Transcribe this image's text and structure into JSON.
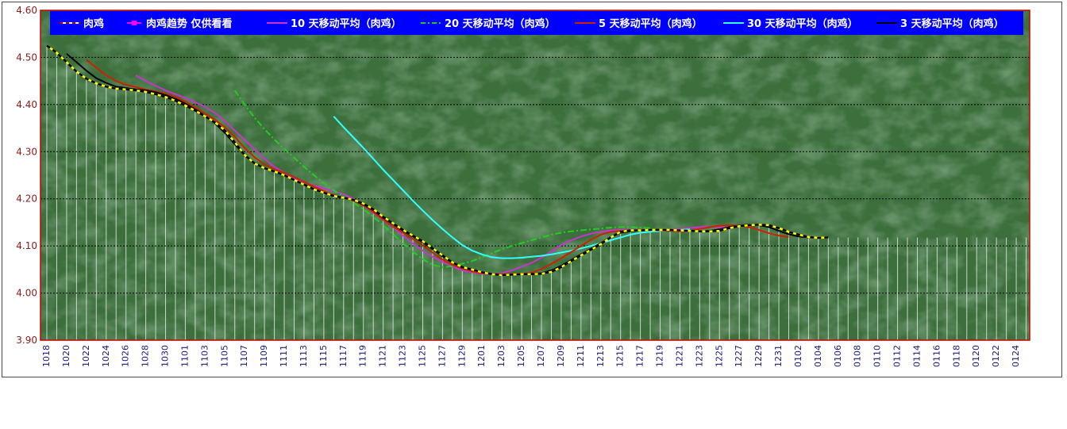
{
  "chart_data": {
    "type": "line",
    "title": "",
    "xlabel": "",
    "ylabel": "",
    "ylim": [
      3.9,
      4.6
    ],
    "yticks": [
      "3.90",
      "4.00",
      "4.10",
      "4.20",
      "4.30",
      "4.40",
      "4.50",
      "4.60"
    ],
    "x_tick_labels": [
      "1018",
      "1020",
      "1022",
      "1024",
      "1026",
      "1028",
      "1030",
      "1101",
      "1103",
      "1105",
      "1107",
      "1109",
      "1111",
      "1113",
      "1115",
      "1117",
      "1119",
      "1121",
      "1123",
      "1125",
      "1127",
      "1129",
      "1201",
      "1203",
      "1205",
      "1207",
      "1209",
      "1211",
      "1213",
      "1215",
      "1217",
      "1219",
      "1221",
      "1223",
      "1225",
      "1227",
      "1229",
      "1231",
      "0102",
      "0104",
      "0106",
      "0108",
      "0110",
      "0112",
      "0114",
      "0116",
      "0118",
      "0120",
      "0122",
      "0124"
    ],
    "x_point_count": 100,
    "grid": true,
    "legend_position": "top",
    "background": "green-texture",
    "colors": {
      "plot_bg": "#3d6f3d",
      "legend_bg": "#0000ff",
      "axis": "#cc0000",
      "grid": "#000000",
      "drop_lines": "#dfe9df"
    },
    "series": [
      {
        "name": "肉鸡",
        "color": "#ffff00",
        "style": "dashed-black",
        "values": [
          4.525,
          4.51,
          4.49,
          4.47,
          4.455,
          4.445,
          4.438,
          4.434,
          4.432,
          4.43,
          4.427,
          4.422,
          4.416,
          4.408,
          4.398,
          4.387,
          4.375,
          4.362,
          4.345,
          4.32,
          4.293,
          4.275,
          4.265,
          4.258,
          4.25,
          4.24,
          4.23,
          4.22,
          4.213,
          4.206,
          4.202,
          4.198,
          4.19,
          4.178,
          4.162,
          4.148,
          4.134,
          4.122,
          4.11,
          4.095,
          4.08,
          4.065,
          4.055,
          4.05,
          4.044,
          4.04,
          4.038,
          4.039,
          4.04,
          4.04,
          4.041,
          4.045,
          4.055,
          4.068,
          4.08,
          4.092,
          4.104,
          4.118,
          4.13,
          4.133,
          4.133,
          4.134,
          4.134,
          4.134,
          4.133,
          4.132,
          4.131,
          4.131,
          4.132,
          4.138,
          4.142,
          4.144,
          4.145,
          4.144,
          4.138,
          4.13,
          4.124,
          4.119,
          4.117,
          4.118
        ]
      },
      {
        "name": "肉鸡趋势  仅供看看",
        "color": "#ff00ff",
        "values": []
      },
      {
        "name": "10 天移动平均（肉鸡）",
        "color": "#cc33cc",
        "values": [
          null,
          null,
          null,
          null,
          null,
          null,
          null,
          null,
          null,
          4.462,
          4.45,
          4.44,
          4.43,
          4.422,
          4.414,
          4.405,
          4.395,
          4.382,
          4.365,
          4.345,
          4.325,
          4.305,
          4.285,
          4.268,
          4.255,
          4.243,
          4.235,
          4.228,
          4.222,
          4.216,
          4.21,
          4.2,
          4.186,
          4.17,
          4.155,
          4.14,
          4.122,
          4.105,
          4.09,
          4.077,
          4.066,
          4.056,
          4.048,
          4.044,
          4.041,
          4.04,
          4.042,
          4.048,
          4.056,
          4.064,
          4.075,
          4.088,
          4.102,
          4.112,
          4.12,
          4.126,
          4.13,
          4.133,
          4.134,
          4.134,
          4.133,
          4.133,
          4.133,
          4.134,
          4.136,
          4.138,
          4.14,
          4.141,
          4.14,
          4.138
        ]
      },
      {
        "name": "20 天移动平均（肉鸡）",
        "color": "#22cc22",
        "style": "dash-dot",
        "values": [
          null,
          null,
          null,
          null,
          null,
          null,
          null,
          null,
          null,
          null,
          null,
          null,
          null,
          null,
          null,
          null,
          null,
          null,
          null,
          4.43,
          4.4,
          4.372,
          4.348,
          4.326,
          4.306,
          4.287,
          4.268,
          4.25,
          4.233,
          4.218,
          4.204,
          4.192,
          4.178,
          4.162,
          4.144,
          4.125,
          4.106,
          4.088,
          4.072,
          4.06,
          4.055,
          4.057,
          4.062,
          4.068,
          4.076,
          4.085,
          4.093,
          4.1,
          4.106,
          4.112,
          4.118,
          4.124,
          4.128,
          4.131,
          4.133,
          4.135,
          4.137,
          4.139,
          4.14,
          4.14,
          4.139,
          4.138
        ]
      },
      {
        "name": "5 天移动平均（肉鸡）",
        "color": "#cc2200",
        "values": [
          null,
          null,
          null,
          null,
          4.495,
          4.478,
          4.462,
          4.45,
          4.442,
          4.437,
          4.432,
          4.428,
          4.423,
          4.416,
          4.406,
          4.394,
          4.381,
          4.368,
          4.352,
          4.332,
          4.308,
          4.288,
          4.273,
          4.263,
          4.255,
          4.246,
          4.236,
          4.226,
          4.216,
          4.208,
          4.202,
          4.196,
          4.186,
          4.172,
          4.156,
          4.141,
          4.128,
          4.115,
          4.101,
          4.086,
          4.071,
          4.06,
          4.052,
          4.046,
          4.042,
          4.04,
          4.04,
          4.04,
          4.041,
          4.043,
          4.051,
          4.062,
          4.074,
          4.087,
          4.1,
          4.113,
          4.124,
          4.13,
          4.132,
          4.133,
          4.134,
          4.134,
          4.133,
          4.132,
          4.131,
          4.132,
          4.136,
          4.14,
          4.143,
          4.144,
          4.143,
          4.14,
          4.134,
          4.127,
          4.122,
          4.119
        ]
      },
      {
        "name": "30 天移动平均（肉鸡）",
        "color": "#33ffff",
        "values": [
          null,
          null,
          null,
          null,
          null,
          null,
          null,
          null,
          null,
          null,
          null,
          null,
          null,
          null,
          null,
          null,
          null,
          null,
          null,
          null,
          null,
          null,
          null,
          null,
          null,
          null,
          null,
          null,
          null,
          4.375,
          4.352,
          4.33,
          4.308,
          4.285,
          4.262,
          4.24,
          4.218,
          4.196,
          4.175,
          4.155,
          4.136,
          4.118,
          4.102,
          4.09,
          4.082,
          4.076,
          4.074,
          4.074,
          4.075,
          4.077,
          4.079,
          4.082,
          4.086,
          4.09,
          4.095,
          4.1,
          4.106,
          4.112,
          4.118,
          4.124,
          4.128,
          4.13,
          4.132,
          4.133,
          4.134,
          4.135
        ]
      },
      {
        "name": "3 天移动平均（肉鸡）",
        "color": "#000000",
        "values": [
          null,
          null,
          4.508,
          4.49,
          4.472,
          4.456,
          4.446,
          4.438,
          4.435,
          4.432,
          4.43,
          4.426,
          4.42,
          4.412,
          4.402,
          4.39,
          4.376,
          4.36,
          4.34,
          4.316,
          4.292,
          4.276,
          4.265,
          4.258,
          4.25,
          4.24,
          4.231,
          4.221,
          4.213,
          4.206,
          4.202,
          4.197,
          4.188,
          4.176,
          4.16,
          4.146,
          4.132,
          4.12,
          4.108,
          4.093,
          4.078,
          4.064,
          4.054,
          4.049,
          4.044,
          4.041,
          4.039,
          4.039,
          4.04,
          4.041,
          4.042,
          4.048,
          4.058,
          4.07,
          4.082,
          4.094,
          4.106,
          4.119,
          4.128,
          4.131,
          4.133,
          4.134,
          4.134,
          4.133,
          4.133,
          4.132,
          4.131,
          4.132,
          4.135,
          4.14,
          4.143,
          4.145,
          4.144,
          4.14,
          4.132,
          4.125,
          4.12,
          4.118
        ]
      }
    ]
  }
}
